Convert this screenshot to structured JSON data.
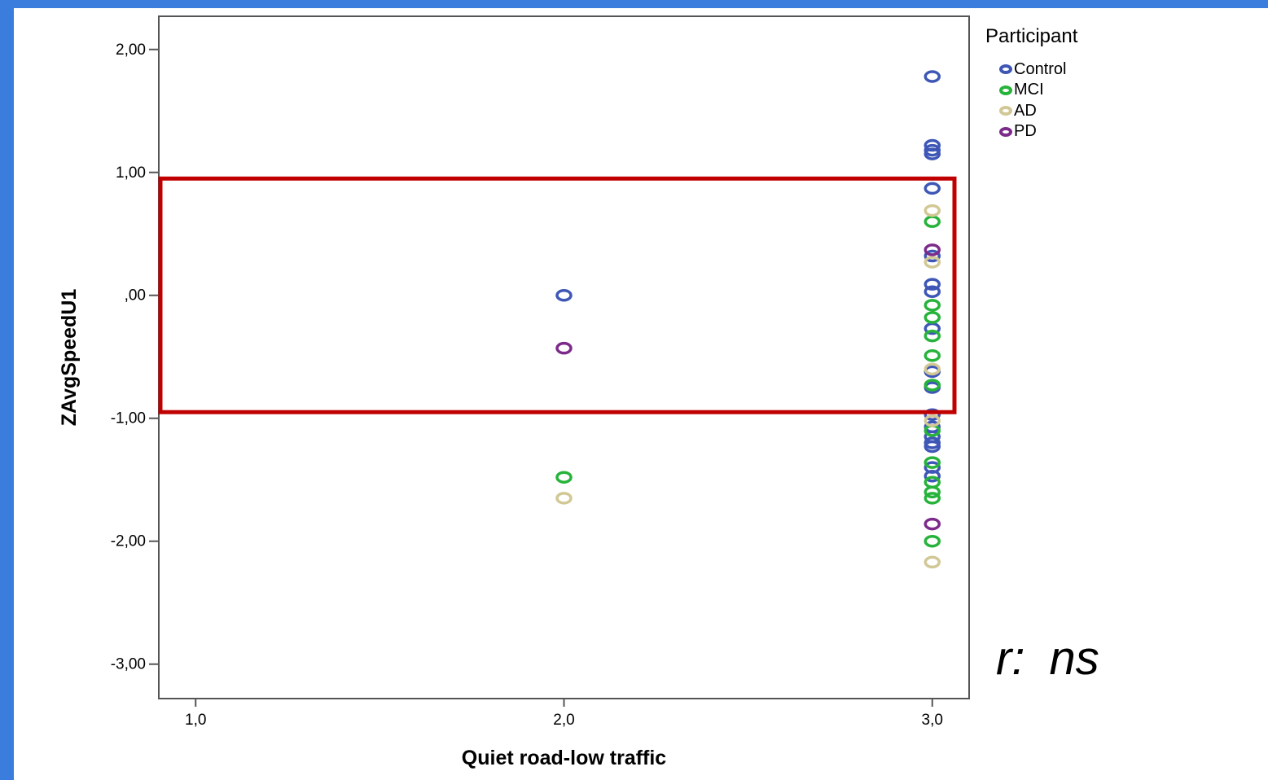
{
  "chart_data": {
    "type": "scatter",
    "title": "",
    "xlabel": "Quiet road-low traffic",
    "ylabel": "ZAvgSpeedU1",
    "xlim": [
      0.9,
      3.1
    ],
    "ylim": [
      -3.28,
      2.27
    ],
    "x_ticks": [
      1.0,
      2.0,
      3.0
    ],
    "x_tick_labels": [
      "1,0",
      "2,0",
      "3,0"
    ],
    "y_ticks": [
      2.0,
      1.0,
      0.0,
      -1.0,
      -2.0,
      -3.0
    ],
    "y_tick_labels": [
      "2,00",
      "1,00",
      ",00",
      "-1,00",
      "-2,00",
      "-3,00"
    ],
    "legend": {
      "title": "Participant",
      "placement": "right-top",
      "entries": [
        "Control",
        "MCI",
        "AD",
        "PD"
      ]
    },
    "series": [
      {
        "name": "Control",
        "color": "#3e57b6",
        "points": [
          [
            2,
            0.0
          ],
          [
            3,
            1.78
          ],
          [
            3,
            1.22
          ],
          [
            3,
            1.18
          ],
          [
            3,
            1.15
          ],
          [
            3,
            0.87
          ],
          [
            3,
            0.32
          ],
          [
            3,
            0.09
          ],
          [
            3,
            0.03
          ],
          [
            3,
            -0.27
          ],
          [
            3,
            -0.62
          ],
          [
            3,
            -0.75
          ],
          [
            3,
            -0.97
          ],
          [
            3,
            -1.07
          ],
          [
            3,
            -1.15
          ],
          [
            3,
            -1.2
          ],
          [
            3,
            -1.23
          ],
          [
            3,
            -1.4
          ],
          [
            3,
            -1.47
          ]
        ]
      },
      {
        "name": "MCI",
        "color": "#27b33b",
        "points": [
          [
            2,
            -1.48
          ],
          [
            3,
            0.6
          ],
          [
            3,
            -0.08
          ],
          [
            3,
            -0.18
          ],
          [
            3,
            -0.33
          ],
          [
            3,
            -0.49
          ],
          [
            3,
            -0.73
          ],
          [
            3,
            -1.1
          ],
          [
            3,
            -1.36
          ],
          [
            3,
            -1.52
          ],
          [
            3,
            -1.6
          ],
          [
            3,
            -1.65
          ],
          [
            3,
            -2.0
          ]
        ]
      },
      {
        "name": "AD",
        "color": "#d2c896",
        "points": [
          [
            2,
            -1.65
          ],
          [
            3,
            0.69
          ],
          [
            3,
            0.27
          ],
          [
            3,
            -0.6
          ],
          [
            3,
            -1.02
          ],
          [
            3,
            -2.17
          ]
        ]
      },
      {
        "name": "PD",
        "color": "#7d2b8b",
        "points": [
          [
            2,
            -0.43
          ],
          [
            3,
            0.37
          ],
          [
            3,
            -1.86
          ]
        ]
      }
    ],
    "highlight_box": {
      "y_range": [
        -0.95,
        0.95
      ],
      "color": "#c00000"
    },
    "annotation": "r:  ns"
  }
}
